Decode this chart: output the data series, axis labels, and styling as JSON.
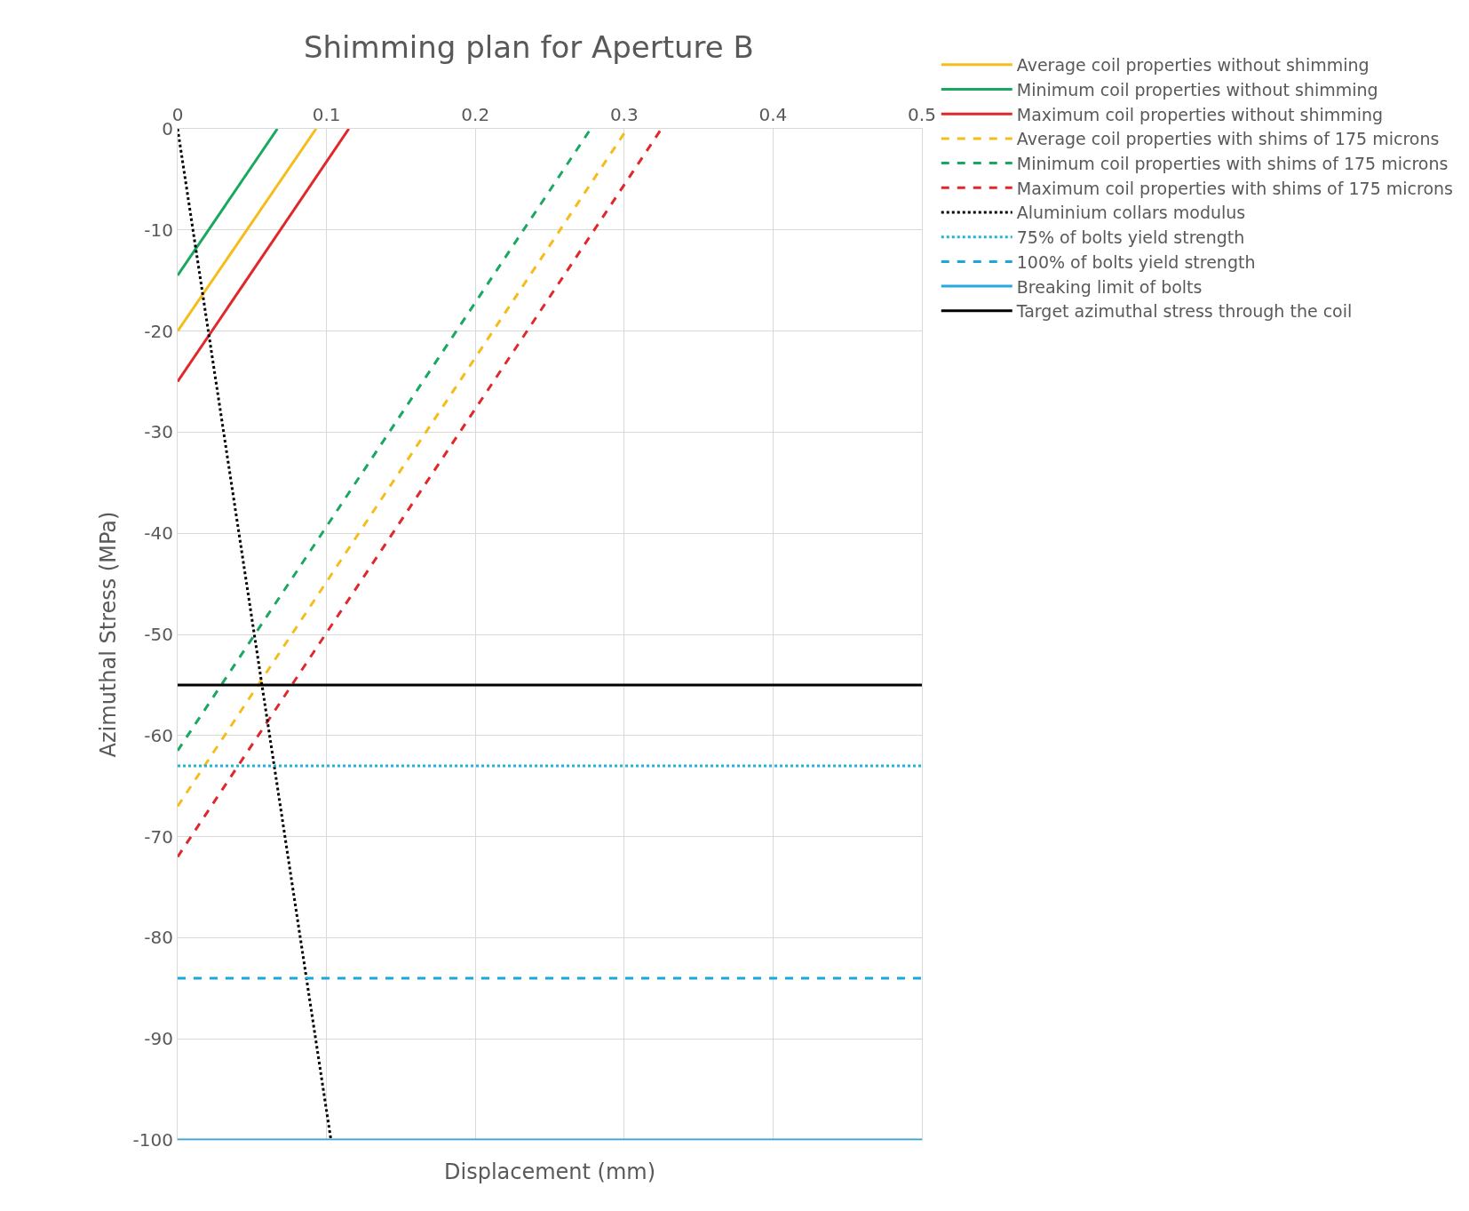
{
  "chart_data": {
    "type": "line",
    "title": "Shimming plan for Aperture B",
    "xlabel": "Displacement (mm)",
    "ylabel": "Azimuthal Stress (MPa)",
    "xlim": [
      0,
      0.5
    ],
    "xticks": [
      0,
      0.1,
      0.2,
      0.3,
      0.4,
      0.5
    ],
    "ylim": [
      -100,
      0
    ],
    "yticks": [
      -100,
      -90,
      -80,
      -70,
      -60,
      -50,
      -40,
      -30,
      -20,
      -10,
      0
    ],
    "grid": true,
    "legend": "right",
    "marker": "none",
    "series": [
      {
        "name": "Average coil properties without shimming",
        "color": "#f5bc1c",
        "line_style": "solid",
        "x": [
          0,
          0.093
        ],
        "values": [
          -20,
          0
        ]
      },
      {
        "name": "Minimum coil properties without shimming",
        "color": "#1aa860",
        "line_style": "solid",
        "x": [
          0,
          0.067
        ],
        "values": [
          -14.5,
          0
        ]
      },
      {
        "name": "Maximum coil properties without shimming",
        "color": "#e0282a",
        "line_style": "solid",
        "x": [
          0,
          0.115
        ],
        "values": [
          -25,
          0
        ]
      },
      {
        "name": "Average coil properties with shims of 175 microns",
        "color": "#f5bc1c",
        "line_style": "dashed",
        "x": [
          0,
          0.302
        ],
        "values": [
          -67,
          0
        ]
      },
      {
        "name": "Minimum coil properties with shims of 175 microns",
        "color": "#1aa860",
        "line_style": "dashed",
        "x": [
          0,
          0.2775
        ],
        "values": [
          -61.5,
          0
        ]
      },
      {
        "name": "Maximum coil properties with shims of 175 microns",
        "color": "#e0282a",
        "line_style": "dashed",
        "x": [
          0,
          0.325
        ],
        "values": [
          -72,
          0
        ]
      },
      {
        "name": "Aluminium collars modulus",
        "color": "#000000",
        "line_style": "dotted",
        "x": [
          0,
          0.103
        ],
        "values": [
          0,
          -100
        ]
      },
      {
        "name": "75% of bolts yield strength",
        "color": "#20b4d8",
        "line_style": "dotted",
        "x": [
          0,
          0.5
        ],
        "values": [
          -63,
          -63
        ]
      },
      {
        "name": "100% of bolts yield strength",
        "color": "#1ea6dc",
        "line_style": "dashed",
        "x": [
          0,
          0.5
        ],
        "values": [
          -84,
          -84
        ]
      },
      {
        "name": "Breaking limit of bolts",
        "color": "#2aa8e0",
        "line_style": "solid",
        "x": [
          0,
          0.5
        ],
        "values": [
          -100,
          -100
        ]
      },
      {
        "name": "Target azimuthal stress through the coil",
        "color": "#000000",
        "line_style": "solid",
        "x": [
          0,
          0.5
        ],
        "values": [
          -55,
          -55
        ]
      }
    ]
  }
}
